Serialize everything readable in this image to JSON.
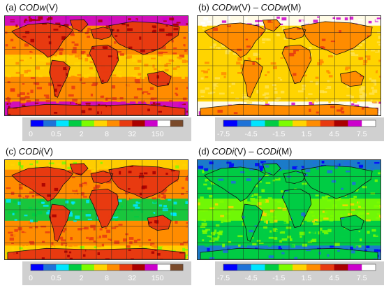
{
  "panels": [
    {
      "id": "a",
      "label": "(a) ",
      "title_parts": [
        {
          "t": "COD",
          "italic": true
        },
        {
          "t": "w",
          "italic": true
        },
        {
          "t": "(V)",
          "italic": false
        }
      ],
      "colorbar": {
        "colors": [
          "#0000ff",
          "#1e72d8",
          "#00e5ff",
          "#00cc44",
          "#7cfc00",
          "#ffd400",
          "#ff8c00",
          "#e83a10",
          "#aa0000",
          "#cc00cc",
          "#ffffff",
          "#7a4a2a"
        ],
        "ticks": [
          "0",
          "0.5",
          "2",
          "8",
          "32",
          "150"
        ]
      },
      "palette": {
        "ocean": [
          "#ff8c00",
          "#e83a10"
        ],
        "land": [
          "#e83a10",
          "#aa0000"
        ],
        "polar": [
          "#cc00cc",
          "#aa0000"
        ],
        "tropics": [
          "#ffd400",
          "#ff8c00"
        ]
      }
    },
    {
      "id": "b",
      "label": "(b) ",
      "title_parts": [
        {
          "t": "COD",
          "italic": true
        },
        {
          "t": "w",
          "italic": true
        },
        {
          "t": "(V) – ",
          "italic": false
        },
        {
          "t": "COD",
          "italic": true
        },
        {
          "t": "w",
          "italic": true
        },
        {
          "t": "(M)",
          "italic": false
        }
      ],
      "colorbar": {
        "colors": [
          "#0000ff",
          "#1e72d8",
          "#00e5ff",
          "#00cc44",
          "#7cfc00",
          "#ffd400",
          "#ff8c00",
          "#e83a10",
          "#aa0000",
          "#cc00cc",
          "#ffffff"
        ],
        "ticks": [
          "-7.5",
          "-4.5",
          "-1.5",
          "1.5",
          "4.5",
          "7.5"
        ]
      },
      "palette": {
        "ocean": [
          "#ffd400",
          "#ffe24d"
        ],
        "land": [
          "#ff8c00",
          "#e83a10"
        ],
        "polar": [
          "#ffffff",
          "#cc00cc"
        ],
        "tropics": [
          "#ffd400",
          "#ff8c00"
        ]
      }
    },
    {
      "id": "c",
      "label": "(c) ",
      "title_parts": [
        {
          "t": "COD",
          "italic": true
        },
        {
          "t": "i",
          "italic": true
        },
        {
          "t": "(V)",
          "italic": false
        }
      ],
      "colorbar": {
        "colors": [
          "#0000ff",
          "#1e72d8",
          "#00e5ff",
          "#00cc44",
          "#7cfc00",
          "#ffd400",
          "#ff8c00",
          "#e83a10",
          "#aa0000",
          "#cc00cc",
          "#ffffff",
          "#7a4a2a"
        ],
        "ticks": [
          "0",
          "0.5",
          "2",
          "8",
          "32",
          "150"
        ]
      },
      "palette": {
        "ocean": [
          "#ff8c00",
          "#e83a10"
        ],
        "land": [
          "#e83a10",
          "#aa0000"
        ],
        "polar": [
          "#ffd400",
          "#7cfc00"
        ],
        "tropics": [
          "#00cc44",
          "#00e5ff"
        ]
      }
    },
    {
      "id": "d",
      "label": "(d) ",
      "title_parts": [
        {
          "t": "COD",
          "italic": true
        },
        {
          "t": "i",
          "italic": true
        },
        {
          "t": "(V) – ",
          "italic": false
        },
        {
          "t": "COD",
          "italic": true
        },
        {
          "t": "i",
          "italic": true
        },
        {
          "t": "(M)",
          "italic": false
        }
      ],
      "colorbar": {
        "colors": [
          "#0000ff",
          "#1e72d8",
          "#00e5ff",
          "#00cc44",
          "#7cfc00",
          "#ffd400",
          "#ff8c00",
          "#e83a10",
          "#aa0000",
          "#cc00cc",
          "#ffffff"
        ],
        "ticks": [
          "-7.5",
          "-4.5",
          "-1.5",
          "1.5",
          "4.5",
          "7.5"
        ]
      },
      "palette": {
        "ocean": [
          "#00cc44",
          "#7cfc00"
        ],
        "land": [
          "#00cc44",
          "#1e72d8"
        ],
        "polar": [
          "#1e72d8",
          "#0000ff"
        ],
        "tropics": [
          "#7cfc00",
          "#ffd400"
        ]
      }
    }
  ],
  "map_style": {
    "coastline": "#111111",
    "grid": "#222222"
  }
}
